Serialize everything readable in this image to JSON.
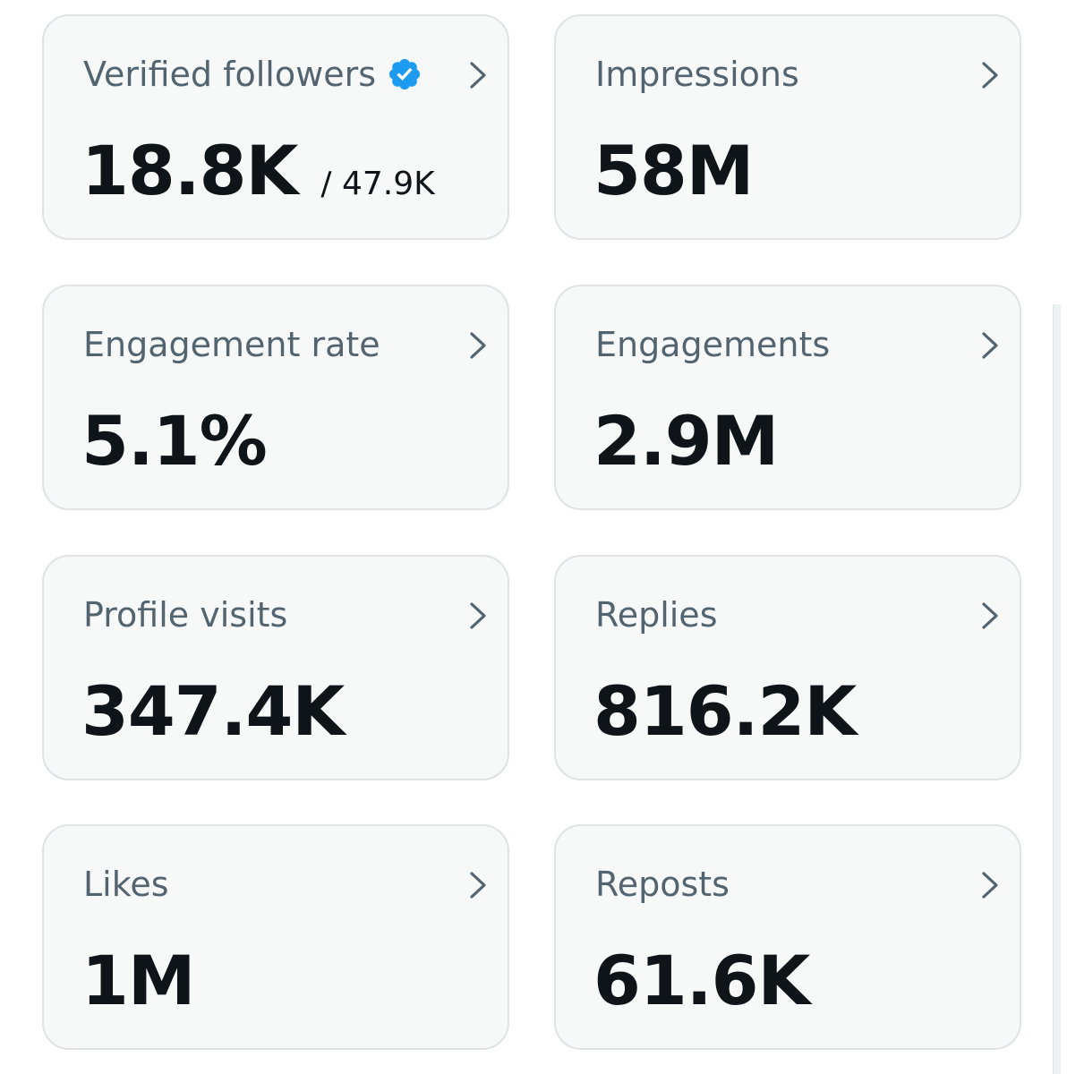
{
  "cards": [
    {
      "label": "Verified followers",
      "value": "18.8K",
      "subvalue": "/ 47.9K",
      "verified_icon": "verified-badge-icon",
      "badge_color": "#1d9bf0"
    },
    {
      "label": "Impressions",
      "value": "58M"
    },
    {
      "label": "Engagement rate",
      "value": "5.1%"
    },
    {
      "label": "Engagements",
      "value": "2.9M"
    },
    {
      "label": "Profile visits",
      "value": "347.4K"
    },
    {
      "label": "Replies",
      "value": "816.2K"
    },
    {
      "label": "Likes",
      "value": "1M"
    },
    {
      "label": "Reposts",
      "value": "61.6K"
    }
  ],
  "icons": {
    "chevron": "chevron-right-icon",
    "verified": "verified-badge-icon"
  },
  "colors": {
    "card_background": "#f7f9f9",
    "card_border": "#dfe3e5",
    "label_text": "#536471",
    "value_text": "#0f1419",
    "verified_blue": "#1d9bf0"
  }
}
